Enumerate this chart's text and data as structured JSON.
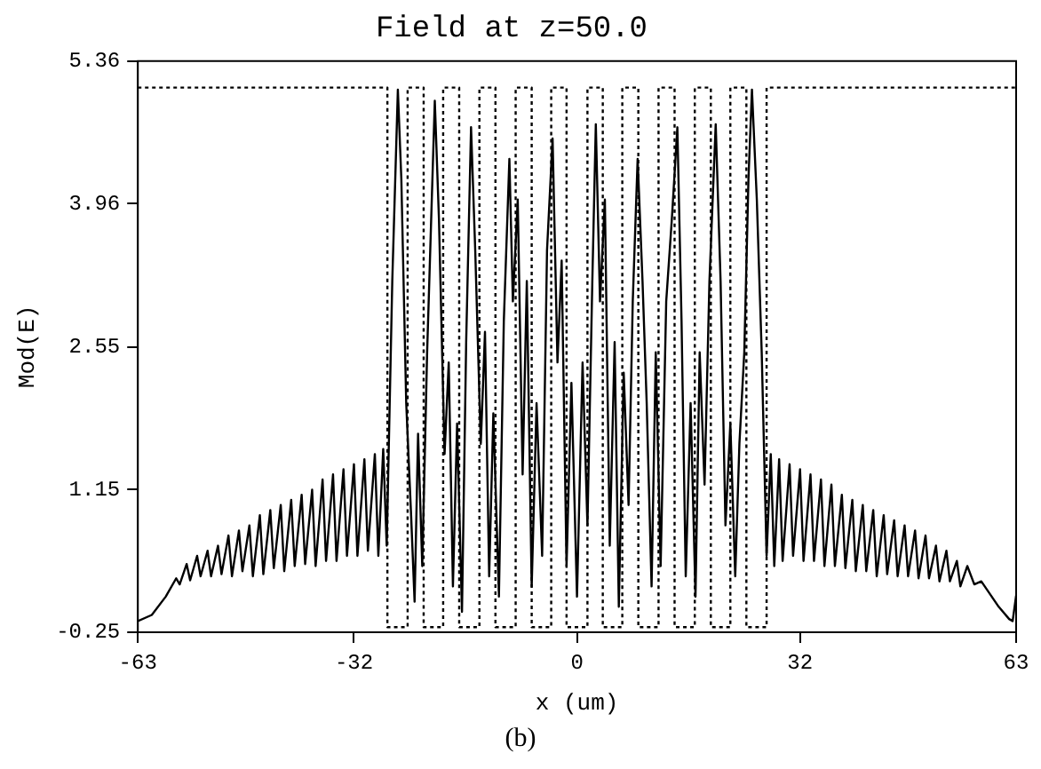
{
  "chart_data": {
    "type": "line",
    "title": "Field at z=50.0",
    "xlabel": "x (um)",
    "ylabel": "Mod(E)",
    "annotations": [
      "(b)"
    ],
    "xlim": [
      -63,
      63
    ],
    "xticks": [
      -63,
      -32,
      0,
      32,
      63
    ],
    "ylim": [
      -0.25,
      5.36
    ],
    "yticks": [
      -0.25,
      1.15,
      2.55,
      3.96,
      5.36
    ],
    "grid": false,
    "legend": false,
    "marker": "none",
    "series": [
      {
        "color": "#000000",
        "line_style": "solid",
        "x": [
          -63,
          -61,
          -59,
          -57.5,
          -57,
          -56,
          -55.5,
          -54.5,
          -54,
          -53,
          -52.5,
          -51.5,
          -51,
          -50,
          -49.5,
          -48.5,
          -48,
          -47,
          -46.5,
          -45.5,
          -45,
          -44,
          -43.5,
          -42.5,
          -42,
          -41,
          -40.5,
          -39.5,
          -39,
          -38,
          -37.5,
          -36.5,
          -36,
          -35,
          -34.5,
          -33.5,
          -33,
          -32,
          -31.5,
          -30.5,
          -30,
          -29,
          -28.5,
          -27.8,
          -27.3,
          -26.5,
          -25.7,
          -25.2,
          -24.5,
          -23.8,
          -23.3,
          -22.8,
          -22.2,
          -21.5,
          -20.4,
          -19.8,
          -19,
          -18.4,
          -17.8,
          -17.2,
          -16.5,
          -15.9,
          -15.2,
          -14.6,
          -13.8,
          -13.2,
          -12.6,
          -12,
          -11.2,
          -10.5,
          -9.7,
          -9.2,
          -8.5,
          -7.8,
          -7.2,
          -6.5,
          -5.8,
          -5,
          -4.3,
          -3.5,
          -2.8,
          -2.2,
          -1.5,
          -0.8,
          0,
          0.8,
          1.5,
          2.2,
          2.7,
          3.3,
          4,
          4.7,
          5.4,
          6,
          6.7,
          7.4,
          8,
          8.7,
          9.4,
          10,
          10.7,
          11.3,
          12,
          12.8,
          13.6,
          14.4,
          15,
          15.6,
          16.3,
          17,
          17.6,
          18.3,
          19,
          19.9,
          20.6,
          21.3,
          22,
          22.7,
          23.3,
          24,
          24.6,
          25.1,
          25.8,
          26.5,
          27.2,
          27.8,
          28.3,
          29,
          29.5,
          30.5,
          31,
          32,
          32.5,
          33.5,
          34,
          35,
          35.5,
          36.5,
          37,
          38,
          38.5,
          39.5,
          40,
          41,
          41.5,
          42.5,
          43,
          44,
          44.5,
          45.5,
          46,
          47,
          47.5,
          48.5,
          49,
          50,
          50.5,
          51.5,
          52,
          53,
          53.5,
          54.5,
          55,
          56,
          57,
          58,
          59,
          60.5,
          62,
          62.5,
          63
        ],
        "values": [
          -0.14,
          -0.08,
          0.1,
          0.28,
          0.22,
          0.42,
          0.26,
          0.5,
          0.3,
          0.55,
          0.3,
          0.6,
          0.32,
          0.7,
          0.3,
          0.75,
          0.35,
          0.8,
          0.3,
          0.9,
          0.32,
          0.95,
          0.38,
          1.0,
          0.35,
          1.05,
          0.4,
          1.1,
          0.42,
          1.15,
          0.4,
          1.25,
          0.45,
          1.3,
          0.45,
          1.35,
          0.5,
          1.4,
          0.5,
          1.45,
          0.55,
          1.5,
          0.5,
          1.55,
          0.6,
          3.2,
          5.08,
          4.2,
          2.0,
          0.9,
          0.05,
          1.7,
          0.4,
          2.5,
          4.97,
          3.8,
          1.5,
          2.4,
          0.2,
          1.8,
          -0.05,
          2.6,
          4.71,
          3.5,
          1.6,
          2.7,
          0.3,
          1.9,
          0.1,
          2.8,
          4.4,
          3.0,
          4.0,
          1.3,
          3.2,
          0.2,
          2.0,
          0.5,
          3.5,
          4.6,
          2.4,
          3.4,
          0.4,
          2.2,
          0.1,
          2.4,
          0.8,
          3.2,
          4.74,
          3.0,
          4.0,
          0.6,
          2.6,
          0.0,
          2.3,
          1.0,
          3.0,
          4.4,
          3.2,
          2.0,
          0.2,
          2.5,
          0.4,
          3.0,
          3.8,
          4.71,
          2.8,
          0.3,
          2.0,
          0.1,
          2.5,
          1.2,
          3.2,
          4.74,
          3.2,
          0.8,
          1.8,
          0.3,
          1.6,
          2.5,
          4.2,
          5.08,
          4.0,
          2.5,
          0.5,
          1.5,
          0.4,
          1.45,
          0.45,
          1.4,
          0.5,
          1.35,
          0.45,
          1.3,
          0.45,
          1.25,
          0.4,
          1.2,
          0.4,
          1.1,
          0.38,
          1.05,
          0.35,
          1.0,
          0.35,
          0.95,
          0.3,
          0.9,
          0.32,
          0.85,
          0.3,
          0.8,
          0.3,
          0.75,
          0.28,
          0.7,
          0.28,
          0.6,
          0.25,
          0.55,
          0.25,
          0.45,
          0.2,
          0.4,
          0.22,
          0.25,
          0.15,
          0.0,
          -0.12,
          -0.14,
          0.11
        ]
      },
      {
        "color": "#000000",
        "line_style": "dotted",
        "x": [
          -63,
          -27.2,
          -27.2,
          -24.3,
          -24.3,
          -22.0,
          -22.0,
          -19.2,
          -19.2,
          -16.9,
          -16.9,
          -14.0,
          -14.0,
          -11.7,
          -11.7,
          -8.8,
          -8.8,
          -6.5,
          -6.5,
          -3.7,
          -3.7,
          -1.5,
          -1.5,
          1.5,
          1.5,
          3.7,
          3.7,
          6.5,
          6.5,
          8.8,
          8.8,
          11.7,
          11.7,
          14.0,
          14.0,
          16.9,
          16.9,
          19.2,
          19.2,
          22.0,
          22.0,
          24.3,
          24.3,
          27.2,
          27.2,
          63
        ],
        "values": [
          5.1,
          5.1,
          -0.2,
          -0.2,
          5.1,
          5.1,
          -0.2,
          -0.2,
          5.1,
          5.1,
          -0.2,
          -0.2,
          5.1,
          5.1,
          -0.2,
          -0.2,
          5.1,
          5.1,
          -0.2,
          -0.2,
          5.1,
          5.1,
          -0.2,
          -0.2,
          5.1,
          5.1,
          -0.2,
          -0.2,
          5.1,
          5.1,
          -0.2,
          -0.2,
          5.1,
          5.1,
          -0.2,
          -0.2,
          5.1,
          5.1,
          -0.2,
          -0.2,
          5.1,
          5.1,
          -0.2,
          -0.2,
          5.1,
          5.1
        ]
      }
    ]
  }
}
